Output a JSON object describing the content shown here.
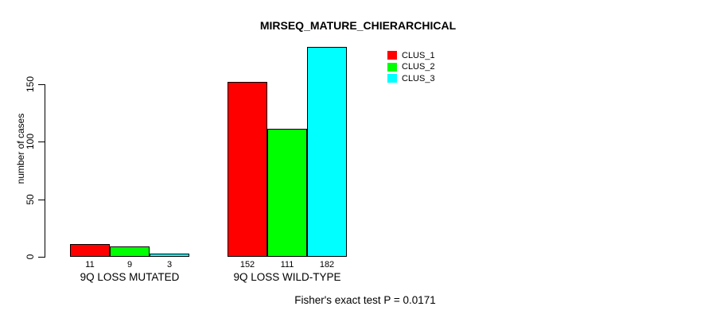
{
  "chart_data": {
    "type": "bar",
    "title": "MIRSEQ_MATURE_CHIERARCHICAL",
    "ylabel": "number of cases",
    "xlabel": "",
    "categories": [
      "9Q LOSS MUTATED",
      "9Q LOSS WILD-TYPE"
    ],
    "series": [
      {
        "name": "CLUS_1",
        "color": "#FF0000",
        "values": [
          11,
          152
        ]
      },
      {
        "name": "CLUS_2",
        "color": "#00FF00",
        "values": [
          9,
          111
        ]
      },
      {
        "name": "CLUS_3",
        "color": "#00FFFF",
        "values": [
          3,
          182
        ]
      }
    ],
    "yticks": [
      0,
      50,
      100,
      150
    ],
    "ylim": [
      0,
      150
    ],
    "grid": false,
    "bar_value_labels_shown": true,
    "legend_position": "top-right",
    "annotation": "Fisher's exact test P = 0.0171"
  }
}
